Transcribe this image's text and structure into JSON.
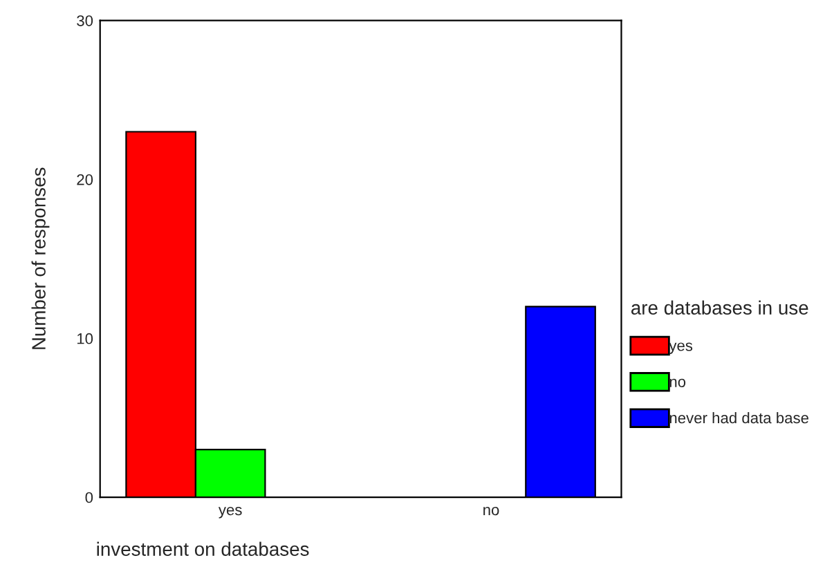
{
  "chart_data": {
    "type": "bar",
    "xlabel": "investment on databases",
    "ylabel": "Number of responses",
    "legend_title": "are databases in use",
    "categories": [
      "yes",
      "no"
    ],
    "series": [
      {
        "name": "yes",
        "color": "#ff0000",
        "values": [
          23,
          null
        ]
      },
      {
        "name": "no",
        "color": "#00ff00",
        "values": [
          3,
          null
        ]
      },
      {
        "name": "never had data base",
        "color": "#0000ff",
        "values": [
          null,
          12
        ]
      }
    ],
    "ylim": [
      0,
      30
    ],
    "yticks": [
      0,
      10,
      20,
      30
    ],
    "grid": false,
    "legend": "right"
  }
}
